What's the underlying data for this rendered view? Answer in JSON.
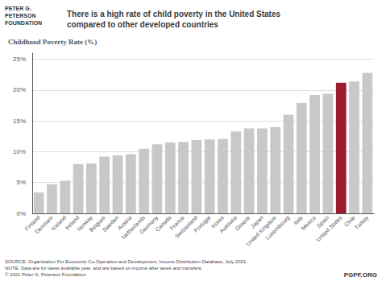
{
  "chart_data": {
    "type": "bar",
    "title": "There is a high rate of child poverty in the United States\ncompared to other developed countries",
    "ylabel": "Childhood Poverty Rate (%)",
    "categories": [
      "Finland",
      "Denmark",
      "Iceland",
      "Ireland",
      "Norway",
      "Belgium",
      "Sweden",
      "Austria",
      "Netherlands",
      "Germany",
      "Canada",
      "France",
      "Switzerland",
      "Portugal",
      "Korea",
      "Australia",
      "Greece",
      "Japan",
      "United Kingdom",
      "Luxembourg",
      "Italy",
      "Mexico",
      "Spain",
      "United States",
      "Chile",
      "Turkey"
    ],
    "values": [
      3.4,
      4.7,
      5.3,
      8.0,
      8.1,
      9.2,
      9.4,
      9.6,
      10.5,
      11.2,
      11.5,
      11.6,
      11.9,
      12.0,
      12.1,
      13.3,
      13.8,
      13.8,
      14.0,
      16.0,
      17.9,
      19.2,
      19.4,
      21.2,
      21.4,
      22.8
    ],
    "colors": [
      "#c8c8c8",
      "#c8c8c8",
      "#c8c8c8",
      "#c8c8c8",
      "#c8c8c8",
      "#c8c8c8",
      "#c8c8c8",
      "#c8c8c8",
      "#c8c8c8",
      "#c8c8c8",
      "#c8c8c8",
      "#c8c8c8",
      "#c8c8c8",
      "#c8c8c8",
      "#c8c8c8",
      "#c8c8c8",
      "#c8c8c8",
      "#c8c8c8",
      "#c8c8c8",
      "#c8c8c8",
      "#c8c8c8",
      "#c8c8c8",
      "#c8c8c8",
      "#9b1c2e",
      "#c8c8c8",
      "#c8c8c8"
    ],
    "ylim": [
      0,
      26
    ],
    "yticks": [
      {
        "value": 0,
        "label": "0%"
      },
      {
        "value": 5,
        "label": "5%"
      },
      {
        "value": 10,
        "label": "10%"
      },
      {
        "value": 15,
        "label": "15%"
      },
      {
        "value": 20,
        "label": "20%"
      },
      {
        "value": 25,
        "label": "25%"
      }
    ],
    "grid": true,
    "annotations": [
      "PETER G.\nPETERSON\nFOUNDATION",
      "SOURCE: Organization For Economic Co-Operation and Development, Income Distribution Database, July 2021.\nNOTE: Data are for latest available year, and are based on income after taxes and transfers.\n© 2021 Peter G. Peterson Foundation",
      "PGPF.ORG"
    ]
  }
}
